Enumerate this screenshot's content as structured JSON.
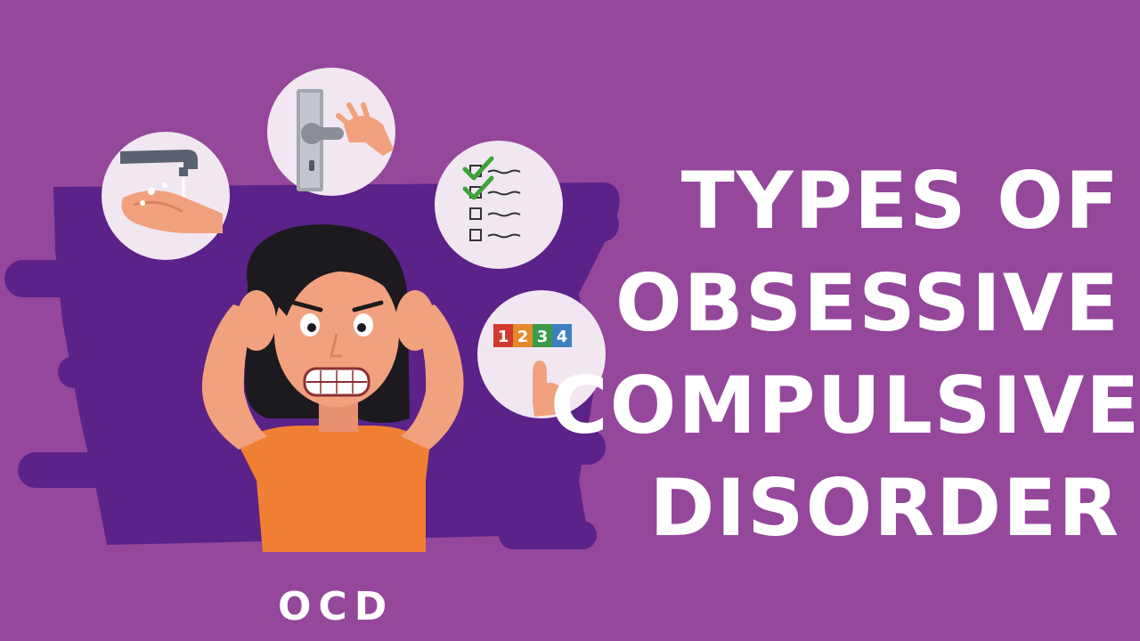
{
  "title": {
    "line1": "TYPES OF",
    "line2": "OBSESSIVE",
    "line3": "COMPULSIVE",
    "line4": "DISORDER"
  },
  "label": "OCD",
  "counting_numbers": [
    "1",
    "2",
    "3",
    "4"
  ],
  "icons": [
    "hand-washing-icon",
    "door-handle-icon",
    "checklist-icon",
    "counting-icon"
  ],
  "colors": {
    "background": "#94479b",
    "shape": "#5b2289",
    "circle": "#f1e7f1",
    "skin": "#f2a17e",
    "hair": "#1c1a1e",
    "shirt": "#f07f33",
    "check": "#3fa33a"
  }
}
